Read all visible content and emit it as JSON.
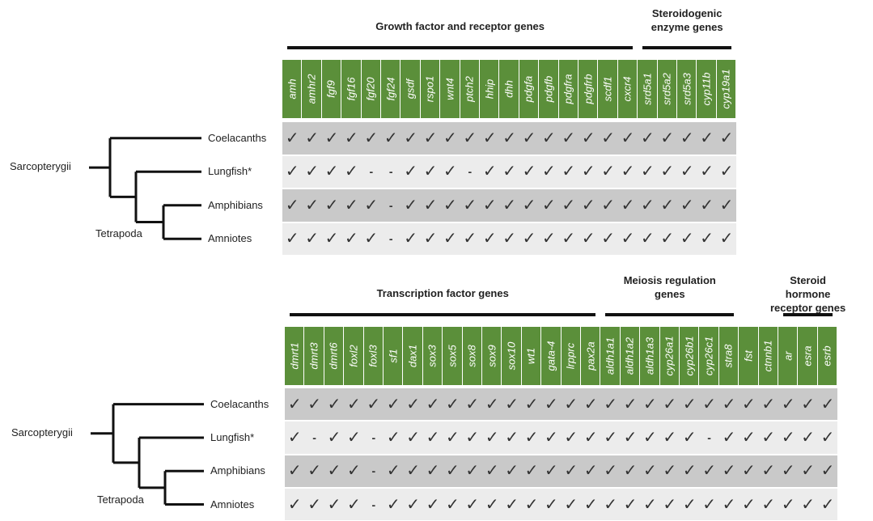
{
  "check_symbol": "✓",
  "absent_symbol": "-",
  "colors": {
    "header_green": "#5b8f3a",
    "row_dark": "#c9c9c9",
    "row_light": "#ececec"
  },
  "top": {
    "groups": [
      {
        "title": "Growth factor and receptor genes",
        "genes": [
          "amh",
          "amhr2",
          "fgf9",
          "fgf16",
          "fgf20",
          "fgf24",
          "gsdf",
          "rspo1",
          "wnt4",
          "ptch2",
          "hhip",
          "dhh",
          "pdgfa",
          "pdgfb",
          "pdgfra",
          "pdgfrb",
          "scdf1",
          "cxcr4"
        ]
      },
      {
        "title": "Steroidogenic\nenzyme genes",
        "genes": [
          "srd5a1",
          "srd5a2",
          "srd5a3",
          "cyp11b",
          "cyp19a1"
        ]
      }
    ],
    "rows": [
      {
        "taxon": "Coelacanths",
        "values": [
          1,
          1,
          1,
          1,
          1,
          1,
          1,
          1,
          1,
          1,
          1,
          1,
          1,
          1,
          1,
          1,
          1,
          1,
          1,
          1,
          1,
          1,
          1
        ]
      },
      {
        "taxon": "Lungfish*",
        "values": [
          1,
          1,
          1,
          1,
          0,
          0,
          1,
          1,
          1,
          0,
          1,
          1,
          1,
          1,
          1,
          1,
          1,
          1,
          1,
          1,
          1,
          1,
          1
        ]
      },
      {
        "taxon": "Amphibians",
        "values": [
          1,
          1,
          1,
          1,
          1,
          0,
          1,
          1,
          1,
          1,
          1,
          1,
          1,
          1,
          1,
          1,
          1,
          1,
          1,
          1,
          1,
          1,
          1
        ]
      },
      {
        "taxon": "Amniotes",
        "values": [
          1,
          1,
          1,
          1,
          1,
          0,
          1,
          1,
          1,
          1,
          1,
          1,
          1,
          1,
          1,
          1,
          1,
          1,
          1,
          1,
          1,
          1,
          1
        ]
      }
    ],
    "clades": [
      "Sarcopterygii",
      "Tetrapoda"
    ]
  },
  "bottom": {
    "groups": [
      {
        "title": "Transcription factor genes",
        "genes": [
          "dmrt1",
          "dmrt3",
          "dmrt6",
          "foxl2",
          "foxl3",
          "sf1",
          "dax1",
          "sox3",
          "sox5",
          "sox8",
          "sox9",
          "sox10",
          "wt1",
          "gata-4",
          "lrpprc",
          "pax2a"
        ]
      },
      {
        "title": "Meiosis regulation\ngenes",
        "genes": [
          "aldh1a1",
          "aldh1a2",
          "aldh1a3",
          "cyp26a1",
          "cyp26b1",
          "cyp26c1",
          "stra8"
        ]
      },
      {
        "title": "",
        "genes": [
          "fst",
          "ctnnb1"
        ]
      },
      {
        "title": "Steroid hormone\nreceptor genes",
        "genes": [
          "ar",
          "esra",
          "esrb"
        ]
      }
    ],
    "rows": [
      {
        "taxon": "Coelacanths",
        "values": [
          1,
          1,
          1,
          1,
          1,
          1,
          1,
          1,
          1,
          1,
          1,
          1,
          1,
          1,
          1,
          1,
          1,
          1,
          1,
          1,
          1,
          1,
          1,
          1,
          1,
          1,
          1,
          1
        ]
      },
      {
        "taxon": "Lungfish*",
        "values": [
          1,
          0,
          1,
          1,
          0,
          1,
          1,
          1,
          1,
          1,
          1,
          1,
          1,
          1,
          1,
          1,
          1,
          1,
          1,
          1,
          1,
          0,
          1,
          1,
          1,
          1,
          1,
          1
        ]
      },
      {
        "taxon": "Amphibians",
        "values": [
          1,
          1,
          1,
          1,
          0,
          1,
          1,
          1,
          1,
          1,
          1,
          1,
          1,
          1,
          1,
          1,
          1,
          1,
          1,
          1,
          1,
          1,
          1,
          1,
          1,
          1,
          1,
          1
        ]
      },
      {
        "taxon": "Amniotes",
        "values": [
          1,
          1,
          1,
          1,
          0,
          1,
          1,
          1,
          1,
          1,
          1,
          1,
          1,
          1,
          1,
          1,
          1,
          1,
          1,
          1,
          1,
          1,
          1,
          1,
          1,
          1,
          1,
          1
        ]
      }
    ],
    "clades": [
      "Sarcopterygii",
      "Tetrapoda"
    ]
  }
}
